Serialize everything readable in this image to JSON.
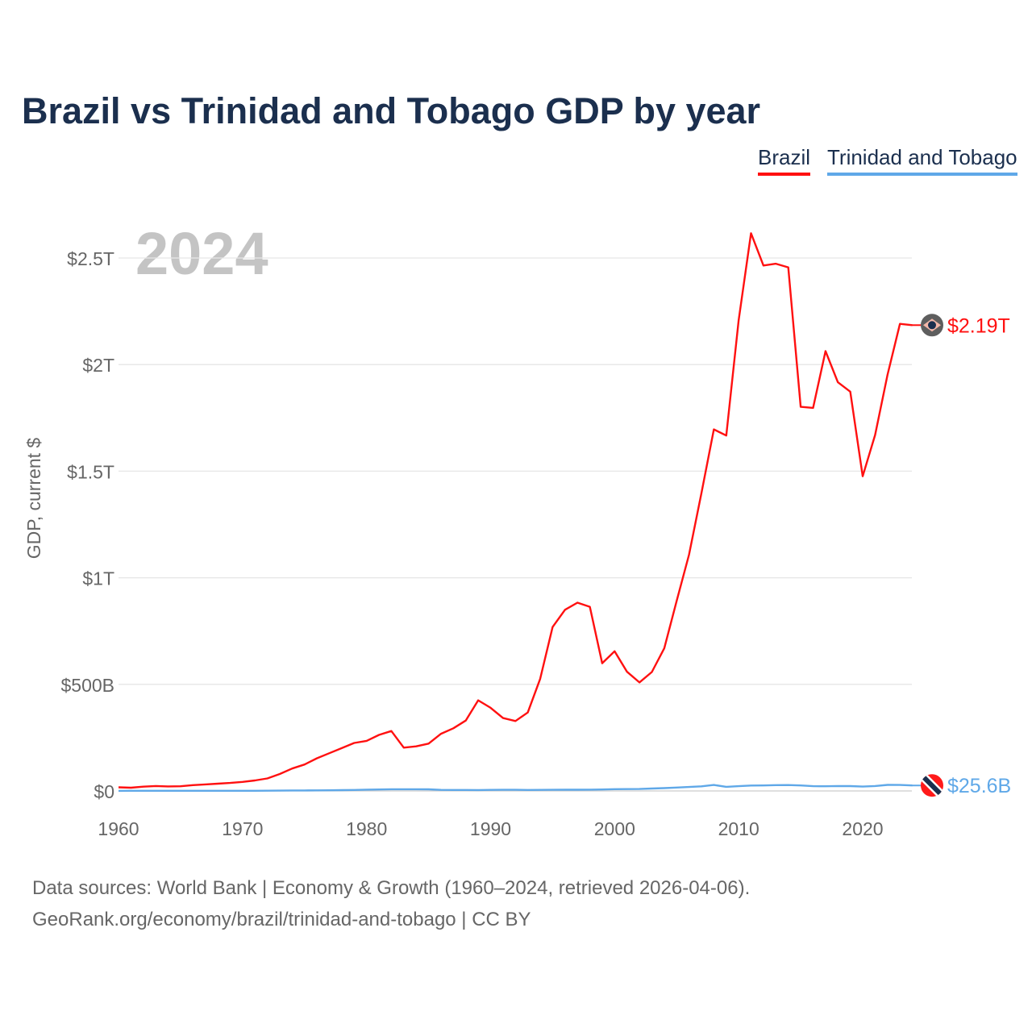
{
  "title": "Brazil vs Trinidad and Tobago GDP by year",
  "legend": [
    "Brazil",
    "Trinidad and Tobago"
  ],
  "year_watermark": "2024",
  "footer": {
    "line1": "Data sources: World Bank | Economy & Growth (1960–2024, retrieved 2026-04-06).",
    "line2": "GeoRank.org/economy/brazil/trinidad-and-tobago | CC BY"
  },
  "chart_data": {
    "type": "line",
    "title": "Brazil vs Trinidad and Tobago GDP by year",
    "xlabel": "",
    "ylabel": "GDP, current $",
    "xlim": [
      1960,
      2024
    ],
    "ylim": [
      0,
      2.7
    ],
    "y_unit": "trillion USD",
    "xticks": [
      1960,
      1970,
      1980,
      1990,
      2000,
      2010,
      2020
    ],
    "yticks": [
      0,
      0.5,
      1,
      1.5,
      2,
      2.5
    ],
    "ytick_labels": [
      "$0",
      "$500B",
      "$1T",
      "$1.5T",
      "$2T",
      "$2.5T"
    ],
    "grid": true,
    "legend_position": "top-right",
    "x_start": 1960,
    "series": [
      {
        "name": "Brazil",
        "color": "#ff1010",
        "end_label": "$2.19T",
        "icon": "brazil-flag-icon",
        "values": [
          0.017,
          0.0152,
          0.0199,
          0.023,
          0.0212,
          0.0218,
          0.0271,
          0.0306,
          0.0339,
          0.0375,
          0.0423,
          0.0492,
          0.0585,
          0.0793,
          0.105,
          0.124,
          0.153,
          0.177,
          0.201,
          0.225,
          0.235,
          0.263,
          0.281,
          0.203,
          0.209,
          0.222,
          0.268,
          0.294,
          0.33,
          0.425,
          0.39,
          0.342,
          0.328,
          0.368,
          0.526,
          0.769,
          0.85,
          0.883,
          0.864,
          0.599,
          0.655,
          0.559,
          0.509,
          0.558,
          0.669,
          0.892,
          1.108,
          1.397,
          1.696,
          1.667,
          2.209,
          2.616,
          2.465,
          2.473,
          2.456,
          1.802,
          1.797,
          2.063,
          1.917,
          1.873,
          1.476,
          1.67,
          1.952,
          2.191,
          2.185
        ]
      },
      {
        "name": "Trinidad and Tobago",
        "color": "#5fa8e8",
        "end_label": "$25.6B",
        "icon": "trinidad-flag-icon",
        "values": [
          0.00054,
          0.00059,
          0.00063,
          0.00068,
          0.00072,
          0.00075,
          0.0008,
          0.00082,
          0.0009,
          0.0009,
          0.0008,
          0.0009,
          0.0011,
          0.0014,
          0.0021,
          0.0024,
          0.0026,
          0.0032,
          0.0036,
          0.0045,
          0.0062,
          0.0068,
          0.008,
          0.0078,
          0.0078,
          0.0074,
          0.0048,
          0.0047,
          0.0044,
          0.0043,
          0.0051,
          0.0053,
          0.0054,
          0.0047,
          0.0049,
          0.0053,
          0.0058,
          0.0057,
          0.006,
          0.0068,
          0.0082,
          0.0088,
          0.009,
          0.0113,
          0.0133,
          0.0159,
          0.0184,
          0.0216,
          0.0279,
          0.0192,
          0.0222,
          0.0254,
          0.0259,
          0.0273,
          0.0276,
          0.0258,
          0.0225,
          0.0221,
          0.023,
          0.0226,
          0.0206,
          0.023,
          0.0283,
          0.0279,
          0.0256
        ]
      }
    ]
  }
}
